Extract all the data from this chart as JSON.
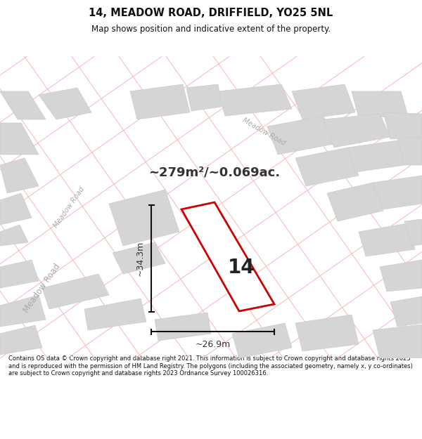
{
  "title": "14, MEADOW ROAD, DRIFFIELD, YO25 5NL",
  "subtitle": "Map shows position and indicative extent of the property.",
  "area_text": "~279m²/~0.069ac.",
  "number_label": "14",
  "dim_width": "~26.9m",
  "dim_height": "~34.3m",
  "footer": "Contains OS data © Crown copyright and database right 2021. This information is subject to Crown copyright and database rights 2023 and is reproduced with the permission of HM Land Registry. The polygons (including the associated geometry, namely x, y co-ordinates) are subject to Crown copyright and database rights 2023 Ordnance Survey 100026316.",
  "bg_color": "#ffffff",
  "map_bg": "#ffffff",
  "plot_color": "#cc0000",
  "road_color": "#f5b8b8",
  "building_color": "#d5d5d5",
  "building_edge": "#cccccc",
  "road_text_color": "#aaaaaa",
  "title_color": "#111111",
  "footer_color": "#111111",
  "title_fontsize": 10.5,
  "subtitle_fontsize": 8.5,
  "footer_fontsize": 6.0
}
